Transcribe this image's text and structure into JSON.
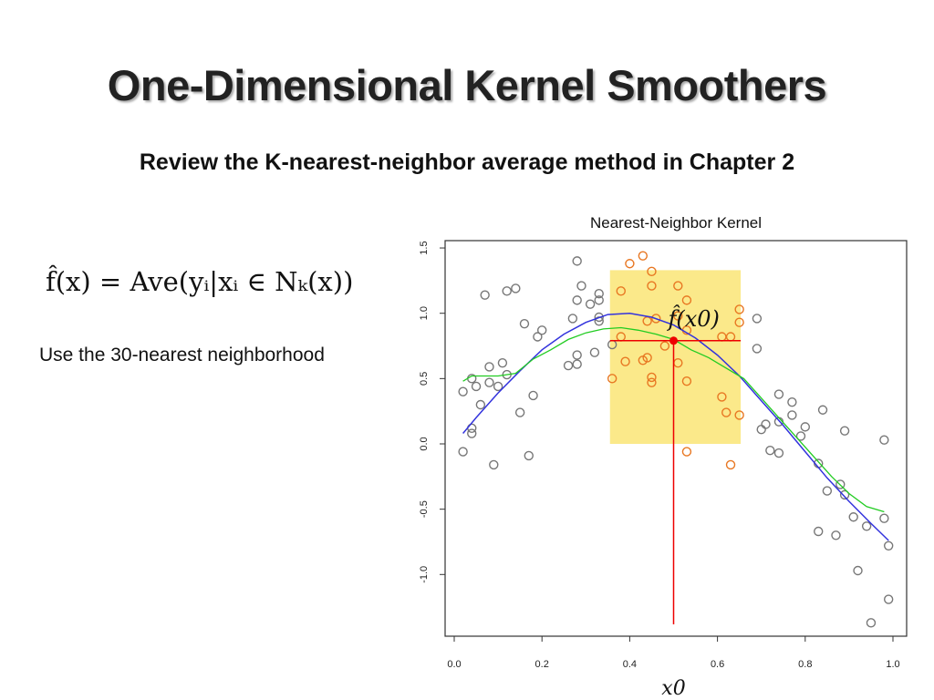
{
  "slide": {
    "title": "One-Dimensional Kernel Smoothers",
    "subtitle": "Review the K-nearest-neighbor average method in Chapter 2",
    "formula": "f̂(x) = Ave(yᵢ|xᵢ ∈ Nₖ(x))",
    "note": "Use the 30-nearest neighborhood"
  },
  "chart_data": {
    "type": "scatter",
    "title": "Nearest-Neighbor Kernel",
    "xlim": [
      0,
      1
    ],
    "ylim": [
      -1.4,
      1.52
    ],
    "x_ticks": [
      "0.0",
      "0.2",
      "0.4",
      "0.6",
      "0.8",
      "1.0"
    ],
    "y_ticks": [
      "-1.0",
      "-0.5",
      "0.0",
      "0.5",
      "1.0",
      "1.5"
    ],
    "grid": false,
    "colors": {
      "points": "#777777",
      "neighbors": "#e87722",
      "true_curve": "#3333dd",
      "fit_curve": "#22cc22",
      "window": "#fbe98a",
      "target": "#ee0000"
    },
    "x0": 0.5,
    "x0_label": "x0",
    "fhat_x0": 0.79,
    "fhat_label": "f̂(x0)",
    "window": {
      "x": [
        0.355,
        0.653
      ],
      "y": [
        0,
        1.33
      ]
    },
    "points": [
      [
        0.02,
        0.4
      ],
      [
        0.04,
        0.5
      ],
      [
        0.05,
        0.44
      ],
      [
        0.08,
        0.47
      ],
      [
        0.1,
        0.44
      ],
      [
        0.12,
        0.53
      ],
      [
        0.08,
        0.59
      ],
      [
        0.11,
        0.62
      ],
      [
        0.06,
        0.3
      ],
      [
        0.15,
        0.24
      ],
      [
        0.18,
        0.37
      ],
      [
        0.02,
        -0.06
      ],
      [
        0.09,
        -0.16
      ],
      [
        0.17,
        -0.09
      ],
      [
        0.04,
        0.12
      ],
      [
        0.04,
        0.08
      ],
      [
        0.07,
        1.14
      ],
      [
        0.12,
        1.17
      ],
      [
        0.14,
        1.19
      ],
      [
        0.16,
        0.92
      ],
      [
        0.19,
        0.82
      ],
      [
        0.2,
        0.87
      ],
      [
        0.28,
        1.4
      ],
      [
        0.29,
        1.21
      ],
      [
        0.28,
        1.1
      ],
      [
        0.31,
        1.07
      ],
      [
        0.33,
        1.15
      ],
      [
        0.33,
        1.1
      ],
      [
        0.27,
        0.96
      ],
      [
        0.33,
        0.97
      ],
      [
        0.33,
        0.94
      ],
      [
        0.28,
        0.68
      ],
      [
        0.26,
        0.6
      ],
      [
        0.28,
        0.61
      ],
      [
        0.32,
        0.7
      ],
      [
        0.36,
        0.76
      ],
      [
        0.69,
        0.96
      ],
      [
        0.69,
        0.73
      ],
      [
        0.74,
        0.38
      ],
      [
        0.77,
        0.32
      ],
      [
        0.77,
        0.22
      ],
      [
        0.84,
        0.26
      ],
      [
        0.71,
        0.15
      ],
      [
        0.7,
        0.11
      ],
      [
        0.74,
        0.17
      ],
      [
        0.8,
        0.13
      ],
      [
        0.79,
        0.06
      ],
      [
        0.89,
        0.1
      ],
      [
        0.98,
        0.03
      ],
      [
        0.72,
        -0.05
      ],
      [
        0.74,
        -0.07
      ],
      [
        0.83,
        -0.15
      ],
      [
        0.88,
        -0.31
      ],
      [
        0.85,
        -0.36
      ],
      [
        0.89,
        -0.39
      ],
      [
        0.91,
        -0.56
      ],
      [
        0.94,
        -0.63
      ],
      [
        0.98,
        -0.57
      ],
      [
        0.99,
        -0.78
      ],
      [
        0.83,
        -0.67
      ],
      [
        0.87,
        -0.7
      ],
      [
        0.92,
        -0.97
      ],
      [
        0.99,
        -1.19
      ],
      [
        0.95,
        -1.37
      ]
    ],
    "neighbor_points": [
      [
        0.4,
        1.38
      ],
      [
        0.43,
        1.44
      ],
      [
        0.45,
        1.32
      ],
      [
        0.45,
        1.21
      ],
      [
        0.38,
        1.17
      ],
      [
        0.51,
        1.21
      ],
      [
        0.44,
        0.94
      ],
      [
        0.46,
        0.96
      ],
      [
        0.38,
        0.82
      ],
      [
        0.39,
        0.63
      ],
      [
        0.43,
        0.64
      ],
      [
        0.44,
        0.66
      ],
      [
        0.36,
        0.5
      ],
      [
        0.45,
        0.51
      ],
      [
        0.45,
        0.47
      ],
      [
        0.48,
        0.75
      ],
      [
        0.51,
        0.62
      ],
      [
        0.53,
        1.1
      ],
      [
        0.65,
        1.03
      ],
      [
        0.65,
        0.93
      ],
      [
        0.51,
        0.98
      ],
      [
        0.53,
        0.87
      ],
      [
        0.61,
        0.82
      ],
      [
        0.63,
        0.82
      ],
      [
        0.53,
        0.48
      ],
      [
        0.61,
        0.36
      ],
      [
        0.62,
        0.24
      ],
      [
        0.65,
        0.22
      ],
      [
        0.53,
        -0.06
      ],
      [
        0.63,
        -0.16
      ]
    ],
    "true_curve": {
      "x": [
        0.02,
        0.05,
        0.1,
        0.15,
        0.2,
        0.25,
        0.3,
        0.35,
        0.4,
        0.45,
        0.5,
        0.55,
        0.6,
        0.65,
        0.7,
        0.75,
        0.8,
        0.85,
        0.9,
        0.95,
        0.99
      ],
      "y": [
        0.08,
        0.2,
        0.39,
        0.56,
        0.72,
        0.84,
        0.93,
        0.99,
        1.0,
        0.97,
        0.91,
        0.81,
        0.68,
        0.52,
        0.33,
        0.14,
        -0.06,
        -0.26,
        -0.44,
        -0.61,
        -0.74
      ]
    },
    "fit_curve": {
      "x": [
        0.02,
        0.04,
        0.1,
        0.14,
        0.18,
        0.22,
        0.26,
        0.3,
        0.34,
        0.38,
        0.42,
        0.46,
        0.5,
        0.54,
        0.58,
        0.62,
        0.66,
        0.7,
        0.74,
        0.78,
        0.82,
        0.86,
        0.9,
        0.94,
        0.98
      ],
      "y": [
        0.48,
        0.52,
        0.52,
        0.54,
        0.65,
        0.72,
        0.8,
        0.85,
        0.88,
        0.89,
        0.87,
        0.84,
        0.8,
        0.72,
        0.66,
        0.58,
        0.5,
        0.35,
        0.2,
        0.05,
        -0.1,
        -0.25,
        -0.38,
        -0.48,
        -0.52
      ]
    }
  }
}
